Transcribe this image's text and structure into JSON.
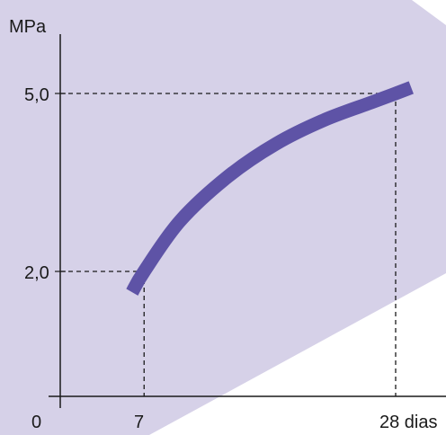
{
  "chart_data": {
    "type": "line",
    "ylabel": "MPa",
    "xlabel": "",
    "xlim": [
      0,
      30
    ],
    "ylim": [
      0,
      5.5
    ],
    "x_tick_labels": [
      "0",
      "7",
      "28 dias"
    ],
    "y_tick_labels": [
      "2,0",
      "5,0"
    ],
    "reference_points": [
      {
        "x": 7,
        "y": 2.0
      },
      {
        "x": 28,
        "y": 5.0
      }
    ],
    "series": [
      {
        "color": "#5e53a6",
        "x": [
          6,
          7,
          10,
          14,
          18,
          22,
          26,
          28,
          29.3
        ],
        "y": [
          1.65,
          2.0,
          2.85,
          3.6,
          4.15,
          4.55,
          4.85,
          5.0,
          5.1
        ]
      }
    ],
    "grid": false,
    "background_band_color": "#d6d1e8"
  }
}
